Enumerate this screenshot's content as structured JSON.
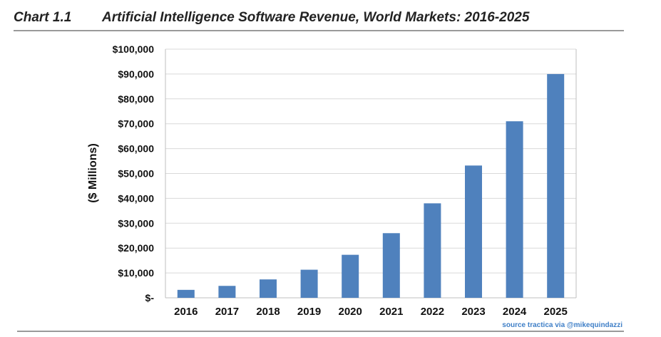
{
  "header": {
    "chart_number": "Chart 1.1",
    "title": "Artificial Intelligence Software Revenue, World Markets: 2016-2025"
  },
  "source": "source tractica via @mikequindazzi",
  "colors": {
    "bar": "#4f81bd",
    "grid": "#d9d9d9",
    "axis": "#bfbfbf",
    "text": "#111111"
  },
  "chart_data": {
    "type": "bar",
    "title": "Artificial Intelligence Software Revenue, World Markets: 2016-2025",
    "xlabel": "",
    "ylabel": "($ Millions)",
    "categories": [
      "2016",
      "2017",
      "2018",
      "2019",
      "2020",
      "2021",
      "2022",
      "2023",
      "2024",
      "2025"
    ],
    "series": [
      {
        "name": "AI Software Revenue",
        "values": [
          3200,
          4800,
          7400,
          11300,
          17300,
          26000,
          38000,
          53200,
          71000,
          90000
        ]
      }
    ],
    "ylim": [
      0,
      100000
    ],
    "yticks": [
      0,
      10000,
      20000,
      30000,
      40000,
      50000,
      60000,
      70000,
      80000,
      90000,
      100000
    ],
    "ytick_labels": [
      "$-",
      "$10,000",
      "$20,000",
      "$30,000",
      "$40,000",
      "$50,000",
      "$60,000",
      "$70,000",
      "$80,000",
      "$90,000",
      "$100,000"
    ],
    "grid": true,
    "legend": "none"
  }
}
